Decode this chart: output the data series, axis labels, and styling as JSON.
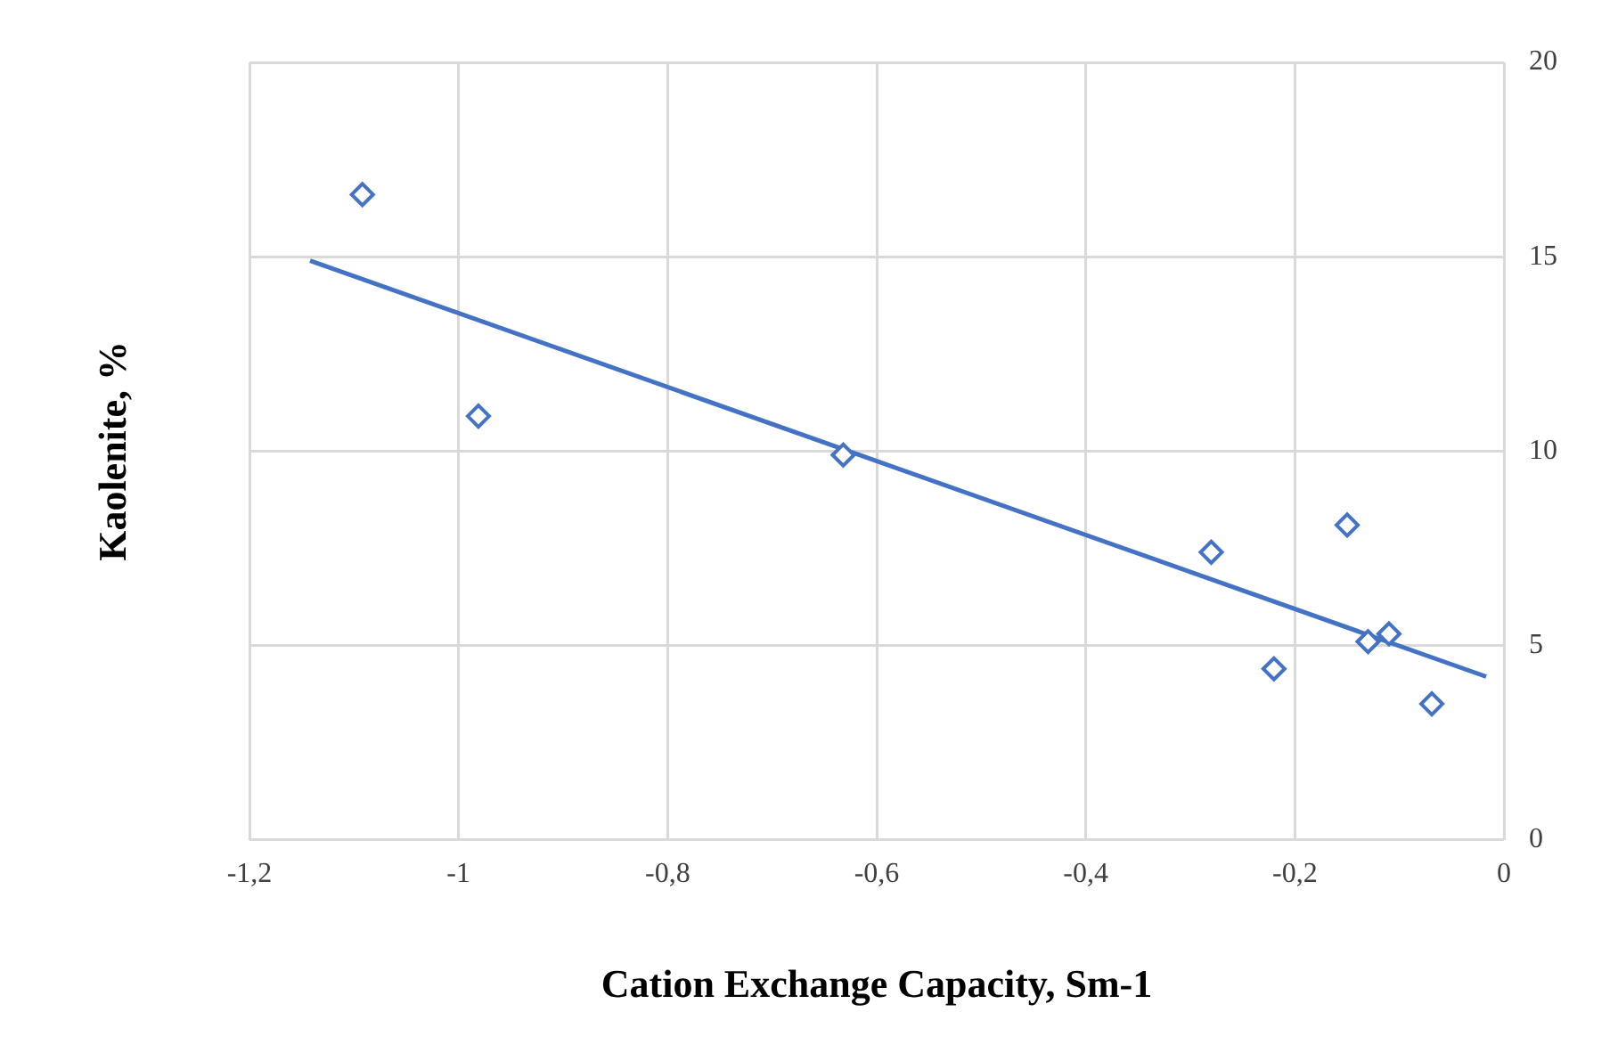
{
  "chart_data": {
    "type": "scatter",
    "xlabel": "Cation Exchange Capacity, Sm-1",
    "ylabel": "Kaolenite, %",
    "xlim": [
      -1.2,
      0
    ],
    "ylim": [
      0,
      20
    ],
    "xticks": [
      {
        "value": -1.2,
        "label": "-1,2"
      },
      {
        "value": -1,
        "label": "-1"
      },
      {
        "value": -0.8,
        "label": "-0,8"
      },
      {
        "value": -0.6,
        "label": "-0,6"
      },
      {
        "value": -0.4,
        "label": "-0,4"
      },
      {
        "value": -0.2,
        "label": "-0,2"
      },
      0
    ],
    "yticks": [
      0,
      5,
      10,
      15,
      20
    ],
    "grid": true,
    "series": [
      {
        "marker": "diamond",
        "color": "#4472c4",
        "x": [
          -1.092,
          -0.981,
          -0.632,
          -0.28,
          -0.22,
          -0.15,
          -0.13,
          -0.11,
          -0.069
        ],
        "values": [
          16.6,
          10.9,
          9.9,
          7.4,
          4.4,
          8.1,
          5.1,
          5.3,
          3.5
        ]
      },
      {
        "type": "line",
        "marker": "none",
        "color": "#4472c4",
        "x": [
          -1.142,
          -0.017
        ],
        "values": [
          14.9,
          4.2
        ]
      }
    ]
  }
}
